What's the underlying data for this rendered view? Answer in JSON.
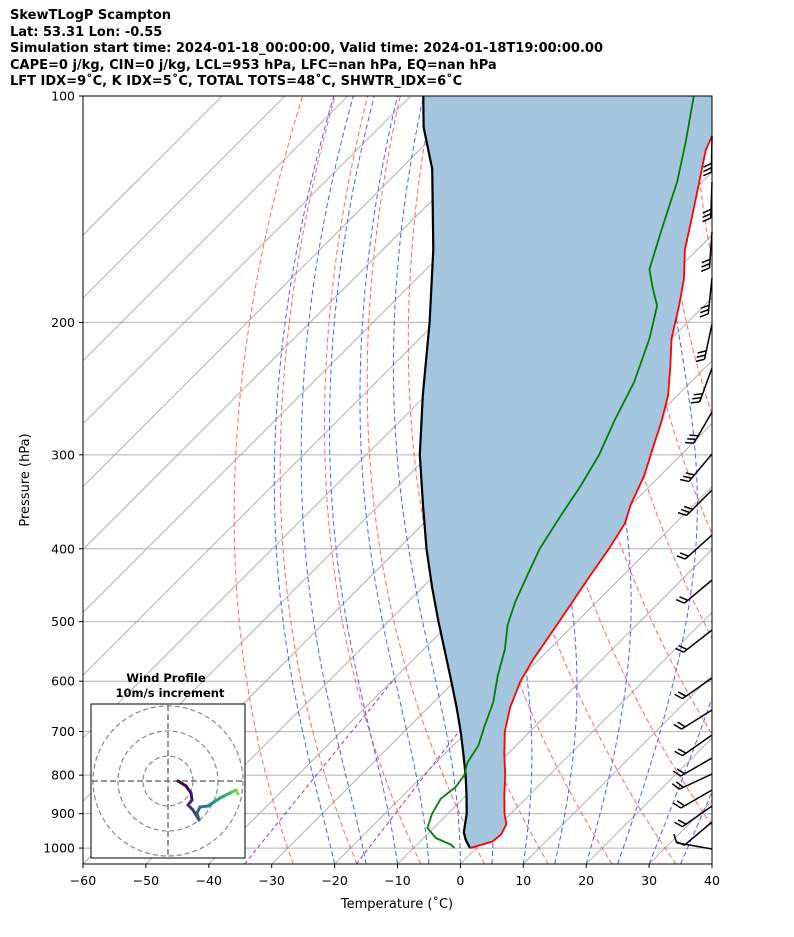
{
  "header": {
    "line1": "SkewTLogP Scampton",
    "line2": "Lat: 53.31   Lon: -0.55",
    "line3": "Simulation start time: 2024-01-18_00:00:00, Valid time: 2024-01-18T19:00:00.00",
    "line4": "CAPE=0 j/kg, CIN=0 j/kg, LCL=953 hPa, LFC=nan hPa, EQ=nan hPa",
    "line5": "LFT IDX=9˚C, K IDX=5˚C, TOTAL TOTS=48˚C, SHWTR_IDX=6˚C"
  },
  "chart_data": {
    "type": "line",
    "subtype": "skew-T log-P",
    "xlabel": "Temperature (˚C)",
    "ylabel": "Pressure (hPa)",
    "xlim": [
      -60,
      40
    ],
    "ylim": [
      1050,
      100
    ],
    "y_scale": "log",
    "x_ticks": [
      "−60",
      "−50",
      "−40",
      "−30",
      "−20",
      "−10",
      "0",
      "10",
      "20",
      "30",
      "40"
    ],
    "y_ticks": [
      "100",
      "200",
      "300",
      "400",
      "500",
      "600",
      "700",
      "800",
      "900",
      "1000"
    ],
    "grid": true,
    "series": [
      {
        "role": "temperature",
        "color": "#ff0000",
        "points": [
          [
            -1,
            1000
          ],
          [
            1.5,
            980
          ],
          [
            1.8,
            960
          ],
          [
            1,
            930
          ],
          [
            -1,
            900
          ],
          [
            -4,
            850
          ],
          [
            -7,
            800
          ],
          [
            -10.5,
            750
          ],
          [
            -14,
            700
          ],
          [
            -17,
            650
          ],
          [
            -19.5,
            600
          ],
          [
            -21,
            560
          ],
          [
            -22.2,
            520
          ],
          [
            -23.5,
            480
          ],
          [
            -25,
            440
          ],
          [
            -26.5,
            400
          ],
          [
            -28,
            370
          ],
          [
            -30,
            350
          ],
          [
            -32.5,
            320
          ],
          [
            -36,
            290
          ],
          [
            -38.5,
            270
          ],
          [
            -41.5,
            250
          ],
          [
            -45.5,
            230
          ],
          [
            -50,
            210
          ],
          [
            -54,
            190
          ],
          [
            -57.5,
            175
          ],
          [
            -62,
            160
          ],
          [
            -66,
            145
          ],
          [
            -70.5,
            130
          ],
          [
            -74.5,
            118
          ],
          [
            -76.5,
            110
          ],
          [
            -79,
            100
          ]
        ]
      },
      {
        "role": "dewpoint",
        "color": "#008000",
        "points": [
          [
            -3.5,
            1000
          ],
          [
            -4.5,
            990
          ],
          [
            -8,
            970
          ],
          [
            -11,
            940
          ],
          [
            -12.5,
            900
          ],
          [
            -13.5,
            860
          ],
          [
            -13,
            830
          ],
          [
            -13.5,
            800
          ],
          [
            -15,
            770
          ],
          [
            -16,
            730
          ],
          [
            -18,
            690
          ],
          [
            -20.5,
            640
          ],
          [
            -24,
            590
          ],
          [
            -27,
            545
          ],
          [
            -30.5,
            505
          ],
          [
            -33,
            470
          ],
          [
            -35.5,
            430
          ],
          [
            -37.5,
            400
          ],
          [
            -39.5,
            360
          ],
          [
            -41,
            330
          ],
          [
            -43,
            300
          ],
          [
            -46,
            270
          ],
          [
            -49,
            240
          ],
          [
            -53.5,
            210
          ],
          [
            -57.5,
            190
          ],
          [
            -61,
            180
          ],
          [
            -64.5,
            170
          ],
          [
            -69,
            150
          ],
          [
            -74,
            130
          ],
          [
            -79,
            115
          ],
          [
            -85,
            100
          ]
        ]
      },
      {
        "role": "parcel",
        "color": "#000000",
        "points": [
          [
            -1,
            1000
          ],
          [
            -3,
            975
          ],
          [
            -4.5,
            953
          ],
          [
            -7,
            900
          ],
          [
            -10,
            850
          ],
          [
            -13.3,
            800
          ],
          [
            -17,
            750
          ],
          [
            -21,
            700
          ],
          [
            -25.5,
            650
          ],
          [
            -30.5,
            600
          ],
          [
            -36,
            550
          ],
          [
            -42,
            500
          ],
          [
            -48.5,
            450
          ],
          [
            -55.5,
            400
          ],
          [
            -63,
            350
          ],
          [
            -71.5,
            300
          ],
          [
            -80.5,
            250
          ],
          [
            -91,
            200
          ],
          [
            -102,
            160
          ],
          [
            -115,
            125
          ],
          [
            -123,
            110
          ],
          [
            -128,
            100
          ]
        ]
      }
    ],
    "wind_profile": {
      "title": "Wind Profile",
      "subtitle": "10m/s increment"
    }
  }
}
